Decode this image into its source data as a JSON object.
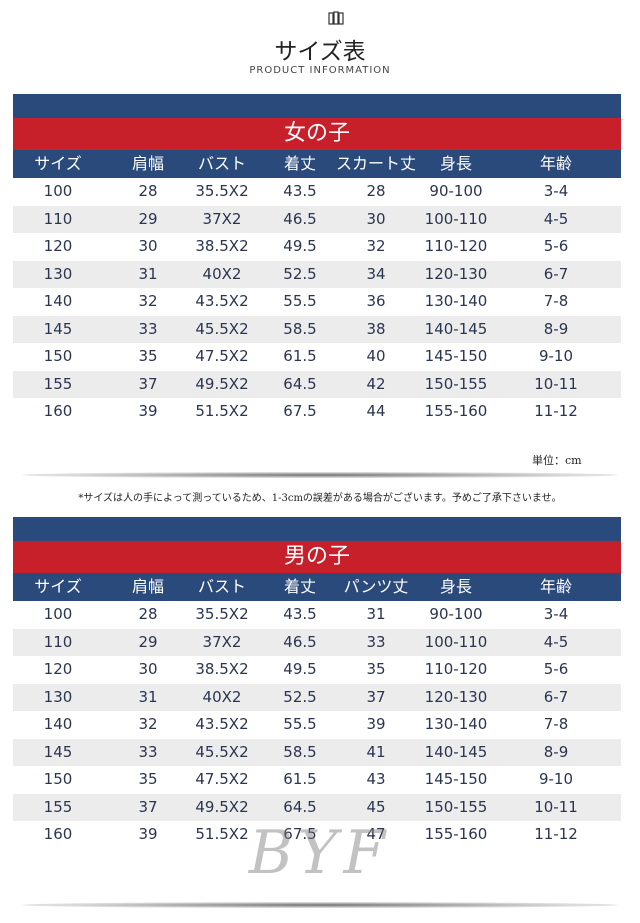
{
  "header": {
    "title": "サイズ表",
    "subtitle": "PRODUCT INFORMATION"
  },
  "unit": "単位：cm",
  "note": "*サイズは人の手によって測っているため、1-3cmの誤差がある場合がございます。予めご了承下さいませ。",
  "watermark": "BYF",
  "tables": [
    {
      "title": "女の子",
      "columns": [
        "サイズ",
        "肩幅",
        "バスト",
        "着丈",
        "スカート丈",
        "身長",
        "年齢"
      ],
      "rows": [
        [
          "100",
          "28",
          "35.5X2",
          "43.5",
          "28",
          "90-100",
          "3-4"
        ],
        [
          "110",
          "29",
          "37X2",
          "46.5",
          "30",
          "100-110",
          "4-5"
        ],
        [
          "120",
          "30",
          "38.5X2",
          "49.5",
          "32",
          "110-120",
          "5-6"
        ],
        [
          "130",
          "31",
          "40X2",
          "52.5",
          "34",
          "120-130",
          "6-7"
        ],
        [
          "140",
          "32",
          "43.5X2",
          "55.5",
          "36",
          "130-140",
          "7-8"
        ],
        [
          "145",
          "33",
          "45.5X2",
          "58.5",
          "38",
          "140-145",
          "8-9"
        ],
        [
          "150",
          "35",
          "47.5X2",
          "61.5",
          "40",
          "145-150",
          "9-10"
        ],
        [
          "155",
          "37",
          "49.5X2",
          "64.5",
          "42",
          "150-155",
          "10-11"
        ],
        [
          "160",
          "39",
          "51.5X2",
          "67.5",
          "44",
          "155-160",
          "11-12"
        ]
      ]
    },
    {
      "title": "男の子",
      "columns": [
        "サイズ",
        "肩幅",
        "バスト",
        "着丈",
        "パンツ丈",
        "身長",
        "年齢"
      ],
      "rows": [
        [
          "100",
          "28",
          "35.5X2",
          "43.5",
          "31",
          "90-100",
          "3-4"
        ],
        [
          "110",
          "29",
          "37X2",
          "46.5",
          "33",
          "100-110",
          "4-5"
        ],
        [
          "120",
          "30",
          "38.5X2",
          "49.5",
          "35",
          "110-120",
          "5-6"
        ],
        [
          "130",
          "31",
          "40X2",
          "52.5",
          "37",
          "120-130",
          "6-7"
        ],
        [
          "140",
          "32",
          "43.5X2",
          "55.5",
          "39",
          "130-140",
          "7-8"
        ],
        [
          "145",
          "33",
          "45.5X2",
          "58.5",
          "41",
          "140-145",
          "8-9"
        ],
        [
          "150",
          "35",
          "47.5X2",
          "61.5",
          "43",
          "145-150",
          "9-10"
        ],
        [
          "155",
          "37",
          "49.5X2",
          "64.5",
          "45",
          "150-155",
          "10-11"
        ],
        [
          "160",
          "39",
          "51.5X2",
          "67.5",
          "47",
          "155-160",
          "11-12"
        ]
      ]
    }
  ]
}
